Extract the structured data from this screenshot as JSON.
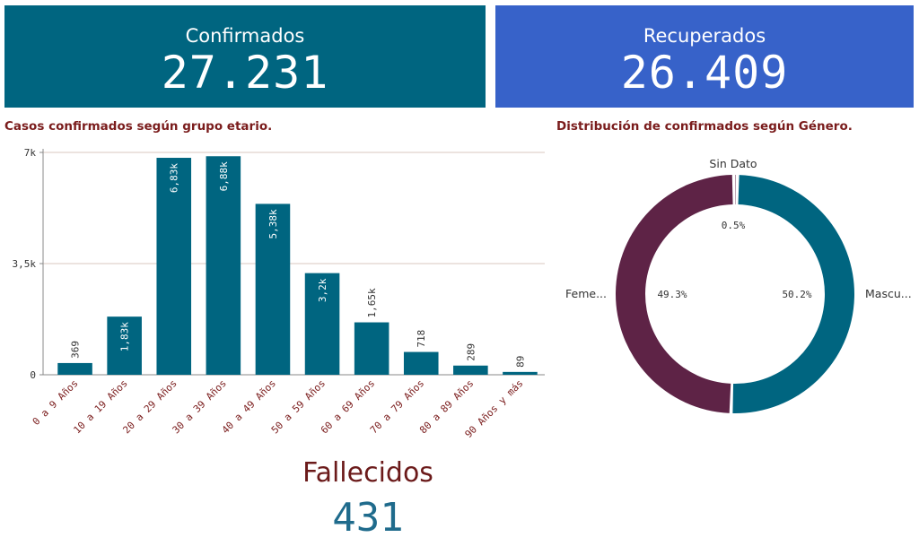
{
  "kpis": {
    "confirmados": {
      "label": "Confirmados",
      "value": "27.231"
    },
    "recuperados": {
      "label": "Recuperados",
      "value": "26.409"
    },
    "fallecidos": {
      "label": "Fallecidos",
      "value": "431"
    }
  },
  "colors": {
    "confirmados_bg": "#006580",
    "recuperados_bg": "#3762c9",
    "bar": "#006580",
    "femenino": "#5e2346",
    "masculino": "#006580",
    "title_text": "#7a1c1c"
  },
  "chart_data": [
    {
      "type": "bar",
      "title": "Casos confirmados según grupo etario.",
      "categories": [
        "0 a 9 Años",
        "10 a 19 Años",
        "20 a 29 Años",
        "30 a 39 Años",
        "40 a 49 Años",
        "50 a 59 Años",
        "60 a 69 Años",
        "70 a 79 Años",
        "80 a 89 Años",
        "90 Años y más"
      ],
      "values": [
        369,
        1830,
        6830,
        6880,
        5380,
        3200,
        1650,
        718,
        289,
        89
      ],
      "value_labels": [
        "369",
        "1,83k",
        "6,83k",
        "6,88k",
        "5,38k",
        "3,2k",
        "1,65k",
        "718",
        "289",
        "89"
      ],
      "yticks": [
        {
          "value": 0,
          "label": "0"
        },
        {
          "value": 3500,
          "label": "3,5k"
        },
        {
          "value": 7000,
          "label": "7k"
        }
      ],
      "ylim": [
        0,
        7000
      ],
      "grid": true
    },
    {
      "type": "pie",
      "title": "Distribución de confirmados según Género.",
      "donut": true,
      "slices": [
        {
          "label": "Mascu...",
          "value": 50.2,
          "pct_label": "50.2%",
          "color": "#006580"
        },
        {
          "label": "Feme...",
          "value": 49.3,
          "pct_label": "49.3%",
          "color": "#5e2346"
        },
        {
          "label": "Sin Dato",
          "value": 0.5,
          "pct_label": "0.5%",
          "color": "#5e2346"
        }
      ]
    }
  ]
}
